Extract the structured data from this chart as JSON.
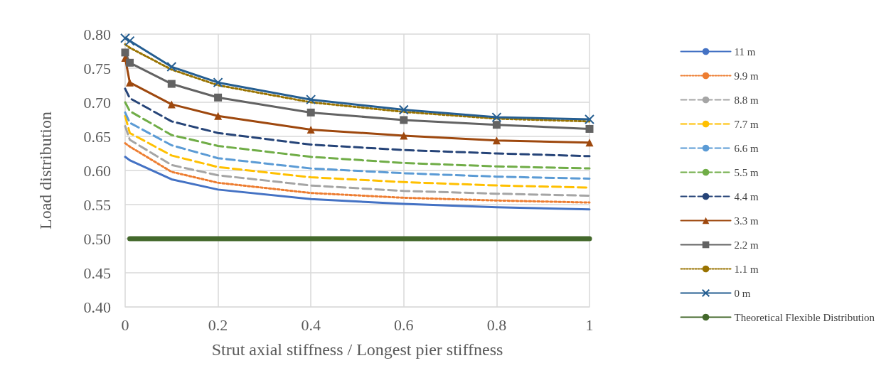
{
  "chart_data": {
    "type": "line",
    "xlabel": "Strut axial stiffness / Longest pier stiffness",
    "ylabel": "Load distribution",
    "x": [
      0,
      0.01,
      0.1,
      0.2,
      0.4,
      0.6,
      0.8,
      1
    ],
    "xlim": [
      0,
      1
    ],
    "xticks": [
      0,
      0.2,
      0.4,
      0.6,
      0.8,
      1
    ],
    "ylim": [
      0.4,
      0.8
    ],
    "yticks": [
      {
        "value": 0.4,
        "label": "0.40"
      },
      {
        "value": 0.45,
        "label": "0.45"
      },
      {
        "value": 0.5,
        "label": "0.50"
      },
      {
        "value": 0.55,
        "label": "0.55"
      },
      {
        "value": 0.6,
        "label": "0.60"
      },
      {
        "value": 0.65,
        "label": "0.65"
      },
      {
        "value": 0.7,
        "label": "0.70"
      },
      {
        "value": 0.75,
        "label": "0.75"
      },
      {
        "value": 0.8,
        "label": "0.80"
      }
    ],
    "grid": true,
    "legend": "right",
    "marker": "none",
    "series": [
      {
        "name": "11 m",
        "color": "#4472c4",
        "line_style": "solid",
        "values": [
          0.62,
          0.615,
          0.587,
          0.572,
          0.558,
          0.551,
          0.546,
          0.543
        ]
      },
      {
        "name": "9.9 m",
        "color": "#ed7d31",
        "line_style": "dotted",
        "values": [
          0.64,
          0.635,
          0.598,
          0.582,
          0.567,
          0.56,
          0.556,
          0.553
        ]
      },
      {
        "name": "8.8 m",
        "color": "#a5a5a5",
        "line_style": "dashed",
        "values": [
          0.665,
          0.645,
          0.608,
          0.593,
          0.578,
          0.57,
          0.566,
          0.563
        ]
      },
      {
        "name": "7.7 m",
        "color": "#ffc000",
        "line_style": "dashed",
        "values": [
          0.68,
          0.655,
          0.622,
          0.605,
          0.59,
          0.583,
          0.578,
          0.575
        ]
      },
      {
        "name": "6.6 m",
        "color": "#5b9bd5",
        "line_style": "dashed",
        "values": [
          0.685,
          0.67,
          0.637,
          0.618,
          0.603,
          0.596,
          0.591,
          0.588
        ]
      },
      {
        "name": "5.5 m",
        "color": "#70ad47",
        "line_style": "dashed",
        "values": [
          0.7,
          0.687,
          0.652,
          0.636,
          0.62,
          0.611,
          0.606,
          0.603
        ]
      },
      {
        "name": "4.4 m",
        "color": "#264478",
        "line_style": "dashed",
        "values": [
          0.72,
          0.706,
          0.672,
          0.655,
          0.638,
          0.63,
          0.625,
          0.621
        ]
      },
      {
        "name": "3.3 m",
        "color": "#9e480e",
        "line_style": "solid",
        "marker": "triangle",
        "values": [
          0.765,
          0.729,
          0.697,
          0.68,
          0.66,
          0.651,
          0.644,
          0.641
        ]
      },
      {
        "name": "2.2 m",
        "color": "#636363",
        "line_style": "solid",
        "marker": "square",
        "values": [
          0.773,
          0.758,
          0.727,
          0.707,
          0.685,
          0.674,
          0.667,
          0.661
        ]
      },
      {
        "name": "1.1 m",
        "color": "#997300",
        "line_style": "dotted",
        "values": [
          0.785,
          0.78,
          0.748,
          0.725,
          0.7,
          0.686,
          0.676,
          0.672
        ]
      },
      {
        "name": "0 m",
        "color": "#255e91",
        "line_style": "solid",
        "marker": "cross",
        "values": [
          0.794,
          0.79,
          0.752,
          0.729,
          0.704,
          0.689,
          0.678,
          0.675
        ]
      },
      {
        "name": "Theoretical Flexible Distribution",
        "color": "#43682b",
        "line_style": "solid",
        "x": [
          0.01,
          1
        ],
        "values": [
          0.5,
          0.5
        ]
      }
    ]
  }
}
